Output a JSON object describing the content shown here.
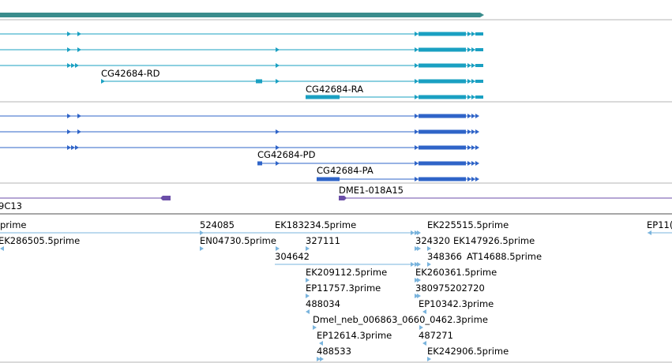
{
  "colors": {
    "gene": "#3a8c8c",
    "transcript": "#1aa0c2",
    "protein": "#2f64c8",
    "clone": "#6b4ea8",
    "est": "#7ab4dd",
    "divider": "#b4b4b4",
    "ruler": "#8a8a8a"
  },
  "tracks": {
    "transcript_labels": [
      "CG42684-RD",
      "CG42684-RA"
    ],
    "protein_labels": [
      "CG42684-PD",
      "CG42684-PA"
    ],
    "clone_labels": [
      "9C13",
      "DME1-018A15"
    ],
    "est_labels": [
      "prime",
      "524085",
      "EK183234.5prime",
      "EK225515.5prime",
      "EP11(",
      "EK286505.5prime",
      "EN04730.5prime",
      "327111",
      "324320",
      "EK147926.5prime",
      "304642",
      "348366",
      "AT14688.5prime",
      "EK209112.5prime",
      "EK260361.5prime",
      "EP11757.3prime",
      "380975202720",
      "488034",
      "EP10342.3prime",
      "Dmel_neb_006863_0660_0462.3prime",
      "EP12614.3prime",
      "487271",
      "488533",
      "EK242906.5prime"
    ]
  }
}
